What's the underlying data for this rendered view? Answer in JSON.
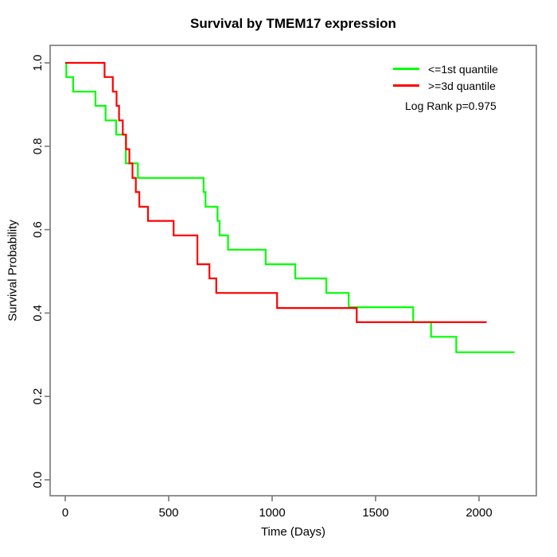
{
  "chart_data": {
    "type": "line",
    "subtype": "kaplan-meier-step",
    "title": "Survival by TMEM17 expression",
    "xlabel": "Time (Days)",
    "ylabel": "Survival Probability",
    "xlim": [
      0,
      2280
    ],
    "ylim": [
      0.0,
      1.0
    ],
    "grid": false,
    "legend_position": "top-right",
    "x_ticks": [
      0,
      500,
      1000,
      1500,
      2000
    ],
    "y_ticks": [
      "0.0",
      "0.2",
      "0.4",
      "0.6",
      "0.8",
      "1.0"
    ],
    "annotation": "Log Rank p=0.975",
    "series": [
      {
        "name": "<=1st quantile",
        "color": "#00ff00",
        "end_time": 2172,
        "points": [
          [
            0,
            1.0
          ],
          [
            5,
            0.966
          ],
          [
            38,
            0.931
          ],
          [
            146,
            0.897
          ],
          [
            195,
            0.862
          ],
          [
            246,
            0.828
          ],
          [
            293,
            0.759
          ],
          [
            351,
            0.724
          ],
          [
            669,
            0.69
          ],
          [
            678,
            0.655
          ],
          [
            736,
            0.621
          ],
          [
            746,
            0.586
          ],
          [
            787,
            0.552
          ],
          [
            969,
            0.517
          ],
          [
            1112,
            0.483
          ],
          [
            1262,
            0.448
          ],
          [
            1370,
            0.414
          ],
          [
            1682,
            0.378
          ],
          [
            1768,
            0.343
          ],
          [
            1890,
            0.306
          ]
        ]
      },
      {
        "name": ">=3d quantile",
        "color": "#ff0000",
        "end_time": 2037,
        "points": [
          [
            0,
            1.0
          ],
          [
            190,
            0.966
          ],
          [
            230,
            0.931
          ],
          [
            248,
            0.897
          ],
          [
            260,
            0.862
          ],
          [
            278,
            0.828
          ],
          [
            294,
            0.793
          ],
          [
            310,
            0.759
          ],
          [
            325,
            0.724
          ],
          [
            341,
            0.69
          ],
          [
            358,
            0.655
          ],
          [
            400,
            0.621
          ],
          [
            524,
            0.586
          ],
          [
            639,
            0.517
          ],
          [
            697,
            0.483
          ],
          [
            730,
            0.448
          ],
          [
            1024,
            0.412
          ],
          [
            1409,
            0.378
          ]
        ]
      }
    ],
    "colors": {
      "box": "#7f7f7f",
      "tick": "#7f7f7f",
      "text": "#000000"
    }
  }
}
